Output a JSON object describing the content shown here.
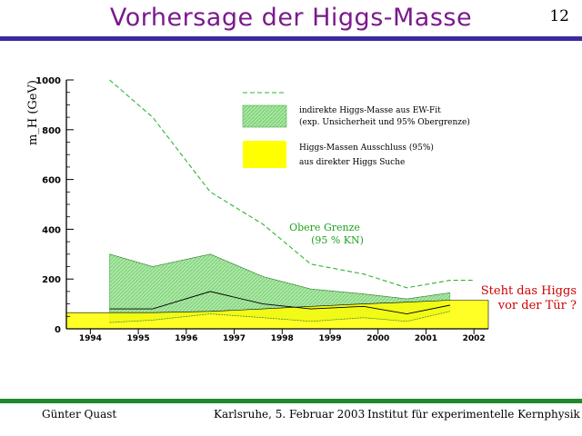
{
  "header": {
    "title": "Vorhersage der Higgs-Masse",
    "page_number": "12"
  },
  "footer": {
    "author": "Günter Quast",
    "place_date": "Karlsruhe,  5. Februar 2003",
    "institute": "Institut für experimentelle Kernphysik"
  },
  "colors": {
    "title": "#7a1a8c",
    "top_rule": "#3a2aa0",
    "bottom_rule": "#1e8a2c",
    "band": "#a8e6a0",
    "exclusion": "#ffff00",
    "upper_limit_line": "#2fb32f",
    "annotation": "#1ea01e",
    "question": "#d00000"
  },
  "chart_data": {
    "type": "area",
    "ylabel": "m_H (GeV)",
    "ylim": [
      0,
      1000
    ],
    "xlim": [
      1993.5,
      2002.3
    ],
    "x_ticks": [
      "1994",
      "1995",
      "1996",
      "1997",
      "1998",
      "1999",
      "2000",
      "2001",
      "2002"
    ],
    "y_ticks": [
      "0",
      "200",
      "400",
      "600",
      "800",
      "1000"
    ],
    "grid": false,
    "legend_position": "top-right",
    "legend": {
      "band_label_1": "indirekte Higgs-Masse aus EW-Fit",
      "band_label_2": "(exp. Unsicherheit und 95% Obergrenze)",
      "exclusion_label_1": "Higgs-Massen Ausschluss (95%)",
      "exclusion_label_2": "aus direkter Higgs Suche"
    },
    "annotation_1": "Obere Grenze",
    "annotation_2": "(95 % KN)",
    "side_annotation_1": "Steht das Higgs",
    "side_annotation_2": "vor der Tür ?",
    "series": [
      {
        "name": "indirekte Higgs-Masse aus EW-Fit",
        "x": [
          1994.4,
          1995.3,
          1996.5,
          1997.6,
          1998.6,
          1999.7,
          2000.6,
          2001.5
        ],
        "center": [
          80,
          80,
          150,
          100,
          80,
          90,
          60,
          95
        ],
        "upper": [
          300,
          250,
          300,
          210,
          160,
          140,
          120,
          145
        ],
        "lower": [
          25,
          35,
          60,
          45,
          30,
          45,
          30,
          70
        ]
      },
      {
        "name": "Obere Grenze (95 % KN)",
        "x": [
          1994.4,
          1995.3,
          1996.5,
          1997.6,
          1998.6,
          1999.7,
          2000.6,
          2001.5,
          2002.0
        ],
        "values": [
          1000,
          850,
          550,
          420,
          260,
          220,
          165,
          195,
          195
        ]
      },
      {
        "name": "Higgs-Massen Ausschluss (95%)",
        "x": [
          1993.5,
          1994.4,
          1995.3,
          1996.5,
          1997.6,
          1998.6,
          1999.7,
          2000.6,
          2001.5,
          2002.3
        ],
        "values": [
          65,
          65,
          65,
          70,
          80,
          90,
          100,
          107,
          115,
          115
        ]
      }
    ]
  }
}
